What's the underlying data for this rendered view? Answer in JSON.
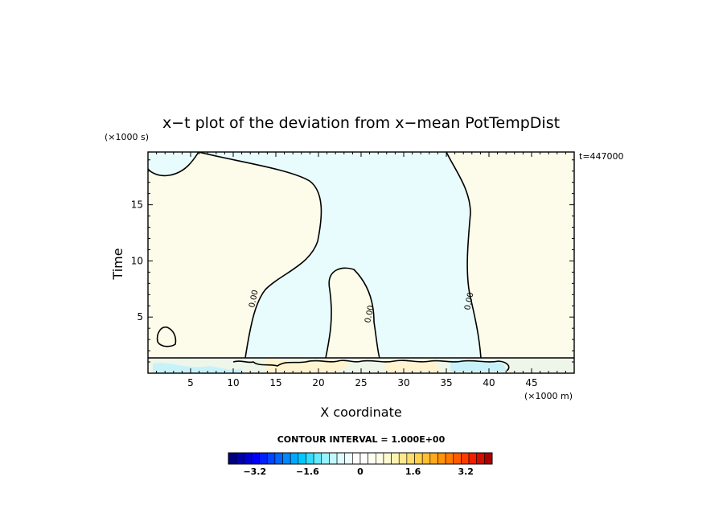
{
  "chart_data": {
    "type": "heatmap",
    "title": "x−t plot of the deviation from x−mean PotTempDist",
    "xlabel": "X coordinate",
    "ylabel": "Time",
    "x_unit": "(×1000 m)",
    "y_unit": "(×1000 s)",
    "annotation": "t=447000",
    "xlim": [
      0,
      50
    ],
    "ylim": [
      0,
      19.7
    ],
    "x_ticks": [
      5,
      10,
      15,
      20,
      25,
      30,
      35,
      40,
      45
    ],
    "y_ticks": [
      5,
      10,
      15
    ],
    "contour_label": "0.00",
    "contour_interval_text": "CONTOUR INTERVAL = 1.000E+00",
    "colorbar": {
      "range": [
        -4,
        4
      ],
      "tick_values": [
        -3.2,
        -1.6,
        0,
        1.6,
        3.2
      ],
      "tick_labels": [
        "−3.2",
        "−1.6",
        "0",
        "1.6",
        "3.2"
      ],
      "colors": [
        "#00007f",
        "#0000a8",
        "#0000d0",
        "#0000ff",
        "#0022ff",
        "#0045ff",
        "#0066ff",
        "#0088ff",
        "#00a8ff",
        "#00c8ff",
        "#33dcff",
        "#66e8ff",
        "#99f2ff",
        "#c2f8ff",
        "#def9ff",
        "#edfcff",
        "#fbfeff",
        "#ffffff",
        "#fffef3",
        "#fffde5",
        "#fff9cf",
        "#fff2b0",
        "#ffe88e",
        "#ffdc6c",
        "#ffcf4f",
        "#ffbe33",
        "#ffa91c",
        "#ff9208",
        "#ff7a00",
        "#ff5c00",
        "#ff3c00",
        "#f21f00",
        "#d00f00",
        "#aa0000"
      ]
    },
    "regions": {
      "positive_color": "#fdfbe9",
      "negative_color": "#e9fcfd"
    }
  }
}
